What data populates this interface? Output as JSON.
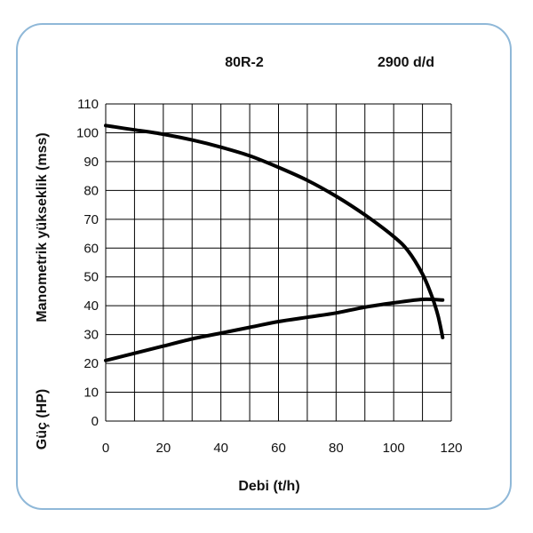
{
  "chart_data": {
    "type": "line",
    "model": "80R-2",
    "speed": "2900 d/d",
    "xlabel": "Debi (t/h)",
    "ylabel_primary": "Manometrik yükseklik (mss)",
    "ylabel_secondary": "Güç (HP)",
    "xlim": [
      0,
      120
    ],
    "ylim": [
      0,
      110
    ],
    "x_ticks": [
      0,
      20,
      40,
      60,
      80,
      100,
      120
    ],
    "y_ticks": [
      0,
      10,
      20,
      30,
      40,
      50,
      60,
      70,
      80,
      90,
      100,
      110
    ],
    "grid": true,
    "grid_x_step": 10,
    "grid_y_step": 10,
    "series": [
      {
        "x": [
          0,
          10,
          20,
          30,
          40,
          50,
          60,
          70,
          80,
          90,
          100,
          105,
          110,
          113,
          115,
          116,
          117
        ],
        "y": [
          102.5,
          101,
          99.5,
          97.5,
          95,
          92,
          88,
          83.5,
          78,
          71.5,
          64,
          59,
          51,
          44,
          38,
          34,
          29
        ]
      },
      {
        "x": [
          0,
          10,
          20,
          30,
          40,
          50,
          60,
          70,
          80,
          90,
          100,
          110,
          117
        ],
        "y": [
          21,
          23.5,
          26,
          28.5,
          30.5,
          32.5,
          34.5,
          36,
          37.5,
          39.5,
          41,
          42.2,
          42
        ]
      }
    ],
    "line_color": "#000000",
    "frame_color": "#8fb8d8"
  }
}
